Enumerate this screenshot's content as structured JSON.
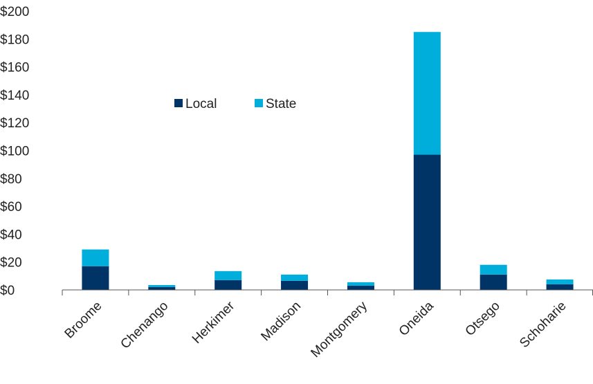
{
  "chart_data": {
    "type": "bar",
    "stacked": true,
    "categories": [
      "Broome",
      "Chenango",
      "Herkimer",
      "Madison",
      "Montgomery",
      "Oneida",
      "Otsego",
      "Schoharie"
    ],
    "series": [
      {
        "name": "Local",
        "color": "#003366",
        "values": [
          17,
          2,
          7,
          6.5,
          3,
          97,
          11,
          4
        ]
      },
      {
        "name": "State",
        "color": "#00AEDB",
        "values": [
          12,
          1.5,
          6.5,
          4.5,
          2.5,
          88,
          7,
          3.5
        ]
      }
    ],
    "yticks": [
      "$0",
      "$20",
      "$40",
      "$60",
      "$80",
      "$100",
      "$120",
      "$140",
      "$160",
      "$180",
      "$200"
    ],
    "ylim": [
      0,
      200
    ],
    "title": "",
    "xlabel": "",
    "ylabel": "",
    "grid": false,
    "legend": "top-left, inside plot"
  }
}
